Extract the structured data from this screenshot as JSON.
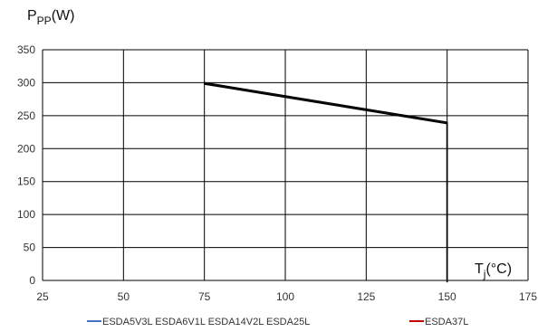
{
  "chart_data": {
    "type": "line",
    "ylabel": {
      "main": "P",
      "sub": "PP",
      "suffix": "(W)"
    },
    "xlabel": {
      "main": "T",
      "sub": "j",
      "suffix": "(°C)"
    },
    "xlim": [
      25,
      175
    ],
    "ylim": [
      0,
      350
    ],
    "xticks": [
      25,
      50,
      75,
      100,
      125,
      150,
      175
    ],
    "yticks": [
      0,
      50,
      100,
      150,
      200,
      250,
      300,
      350
    ],
    "grid": true,
    "legend_position": "bottom",
    "series": [
      {
        "name": "ESDA5V3L ESDA6V1L ESDA14V2L ESDA25L",
        "color": "#4472C4",
        "points": [
          [
            75,
            300
          ],
          [
            150,
            240
          ],
          [
            150,
            0
          ]
        ]
      },
      {
        "name": "ESDA37L",
        "color": "#C00000",
        "points": [
          [
            75,
            300
          ],
          [
            150,
            240
          ],
          [
            150,
            0
          ]
        ]
      }
    ]
  }
}
